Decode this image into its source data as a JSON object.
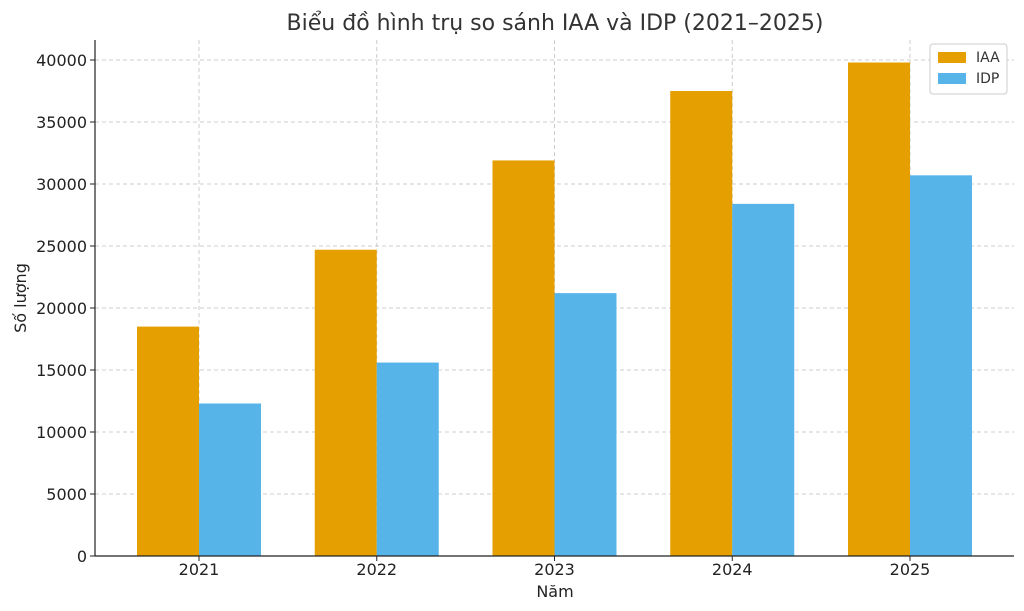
{
  "chart_data": {
    "type": "bar",
    "title": "Biểu đồ hình trụ so sánh IAA và IDP (2021–2025)",
    "xlabel": "Năm",
    "ylabel": "Số lượng",
    "categories": [
      "2021",
      "2022",
      "2023",
      "2024",
      "2025"
    ],
    "series": [
      {
        "name": "IAA",
        "color": "#E69F00",
        "values": [
          18500,
          24700,
          31900,
          37500,
          39800
        ]
      },
      {
        "name": "IDP",
        "color": "#56B4E9",
        "values": [
          12300,
          15600,
          21200,
          28400,
          30700
        ]
      }
    ],
    "ylim": [
      0,
      41800
    ],
    "yticks": [
      "0",
      "5000",
      "10000",
      "15000",
      "20000",
      "25000",
      "30000",
      "35000",
      "40000"
    ],
    "grid": true,
    "legend": "top-right"
  }
}
